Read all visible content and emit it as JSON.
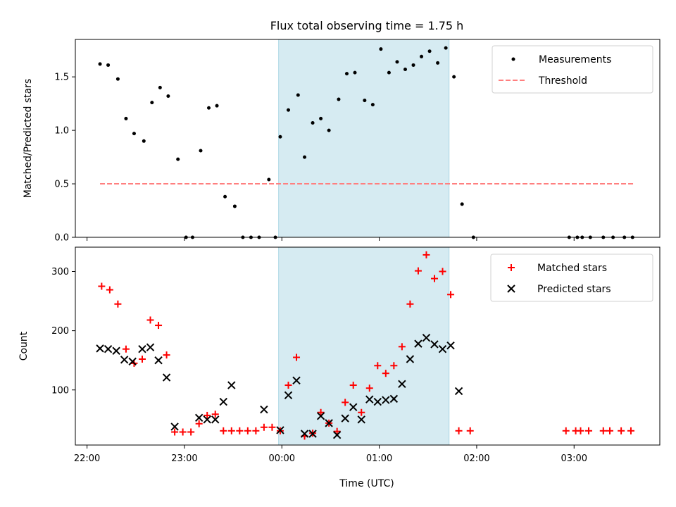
{
  "chart_data": [
    {
      "type": "scatter",
      "title": "Flux total observing time = 1.75 h",
      "ylabel": "Matched/Predicted stars",
      "ylim": [
        0,
        1.85
      ],
      "xlim_hours": [
        21.88,
        27.88
      ],
      "highlight_span": [
        "23:58",
        "01:43"
      ],
      "legend": {
        "placement": "top-right",
        "entries": [
          "Measurements",
          "Threshold"
        ]
      },
      "y_ticks": [
        "0.0",
        "0.5",
        "1.0",
        "1.5"
      ],
      "threshold": {
        "value": 0.5,
        "x_range": [
          "22:08",
          "03:37"
        ],
        "color": "#ff7f7f"
      },
      "series": [
        {
          "name": "Measurements",
          "color": "#000000",
          "points": [
            [
              "22:08",
              1.62
            ],
            [
              "22:13",
              1.61
            ],
            [
              "22:19",
              1.48
            ],
            [
              "22:24",
              1.11
            ],
            [
              "22:29",
              0.97
            ],
            [
              "22:35",
              0.9
            ],
            [
              "22:40",
              1.26
            ],
            [
              "22:45",
              1.4
            ],
            [
              "22:50",
              1.32
            ],
            [
              "22:56",
              0.73
            ],
            [
              "23:01",
              0.0
            ],
            [
              "23:05",
              0.0
            ],
            [
              "23:10",
              0.81
            ],
            [
              "23:15",
              1.21
            ],
            [
              "23:20",
              1.23
            ],
            [
              "23:25",
              0.38
            ],
            [
              "23:31",
              0.29
            ],
            [
              "23:36",
              0.0
            ],
            [
              "23:41",
              0.0
            ],
            [
              "23:46",
              0.0
            ],
            [
              "23:52",
              0.54
            ],
            [
              "23:56",
              0.0
            ],
            [
              "23:59",
              0.94
            ],
            [
              "00:04",
              1.19
            ],
            [
              "00:10",
              1.33
            ],
            [
              "00:14",
              0.75
            ],
            [
              "00:19",
              1.07
            ],
            [
              "00:24",
              1.11
            ],
            [
              "00:29",
              1.0
            ],
            [
              "00:35",
              1.29
            ],
            [
              "00:40",
              1.53
            ],
            [
              "00:45",
              1.54
            ],
            [
              "00:51",
              1.28
            ],
            [
              "00:56",
              1.24
            ],
            [
              "01:01",
              1.76
            ],
            [
              "01:06",
              1.54
            ],
            [
              "01:11",
              1.64
            ],
            [
              "01:16",
              1.57
            ],
            [
              "01:21",
              1.61
            ],
            [
              "01:26",
              1.69
            ],
            [
              "01:31",
              1.74
            ],
            [
              "01:36",
              1.63
            ],
            [
              "01:41",
              1.77
            ],
            [
              "01:46",
              1.5
            ],
            [
              "01:51",
              0.31
            ],
            [
              "01:58",
              0.0
            ],
            [
              "02:57",
              0.0
            ],
            [
              "03:02",
              0.0
            ],
            [
              "03:05",
              0.0
            ],
            [
              "03:10",
              0.0
            ],
            [
              "03:18",
              0.0
            ],
            [
              "03:24",
              0.0
            ],
            [
              "03:31",
              0.0
            ],
            [
              "03:36",
              0.0
            ]
          ]
        }
      ]
    },
    {
      "type": "scatter",
      "xlabel": "Time (UTC)",
      "ylabel": "Count",
      "ylim": [
        7,
        341
      ],
      "xlim_hours": [
        21.88,
        27.88
      ],
      "highlight_span": [
        "23:58",
        "01:43"
      ],
      "legend": {
        "placement": "top-right",
        "entries": [
          "Matched stars",
          "Predicted stars"
        ]
      },
      "x_ticks": [
        "22:00",
        "23:00",
        "00:00",
        "01:00",
        "02:00",
        "03:00"
      ],
      "y_ticks": [
        "100",
        "200",
        "300"
      ],
      "series": [
        {
          "name": "Matched stars",
          "marker": "+",
          "color": "#ff0000",
          "points": [
            [
              "22:09",
              275
            ],
            [
              "22:14",
              269
            ],
            [
              "22:19",
              245
            ],
            [
              "22:24",
              169
            ],
            [
              "22:29",
              145
            ],
            [
              "22:34",
              152
            ],
            [
              "22:39",
              218
            ],
            [
              "22:44",
              209
            ],
            [
              "22:49",
              159
            ],
            [
              "22:54",
              29
            ],
            [
              "22:59",
              29
            ],
            [
              "23:04",
              29
            ],
            [
              "23:09",
              43
            ],
            [
              "23:14",
              57
            ],
            [
              "23:19",
              59
            ],
            [
              "23:24",
              31
            ],
            [
              "23:29",
              31
            ],
            [
              "23:34",
              31
            ],
            [
              "23:39",
              31
            ],
            [
              "23:44",
              31
            ],
            [
              "23:49",
              37
            ],
            [
              "23:54",
              37
            ],
            [
              "23:59",
              31
            ],
            [
              "00:04",
              108
            ],
            [
              "00:09",
              155
            ],
            [
              "00:14",
              22
            ],
            [
              "00:19",
              27
            ],
            [
              "00:24",
              62
            ],
            [
              "00:29",
              44
            ],
            [
              "00:34",
              30
            ],
            [
              "00:39",
              79
            ],
            [
              "00:44",
              108
            ],
            [
              "00:49",
              62
            ],
            [
              "00:54",
              103
            ],
            [
              "00:59",
              141
            ],
            [
              "01:04",
              128
            ],
            [
              "01:09",
              141
            ],
            [
              "01:14",
              173
            ],
            [
              "01:19",
              245
            ],
            [
              "01:24",
              301
            ],
            [
              "01:29",
              328
            ],
            [
              "01:34",
              288
            ],
            [
              "01:39",
              300
            ],
            [
              "01:44",
              261
            ],
            [
              "01:49",
              31
            ],
            [
              "01:56",
              31
            ],
            [
              "02:55",
              31
            ],
            [
              "03:01",
              31
            ],
            [
              "03:04",
              31
            ],
            [
              "03:09",
              31
            ],
            [
              "03:18",
              31
            ],
            [
              "03:22",
              31
            ],
            [
              "03:29",
              31
            ],
            [
              "03:35",
              31
            ]
          ]
        },
        {
          "name": "Predicted stars",
          "marker": "x",
          "color": "#000000",
          "points": [
            [
              "22:08",
              170
            ],
            [
              "22:13",
              169
            ],
            [
              "22:18",
              166
            ],
            [
              "22:23",
              151
            ],
            [
              "22:28",
              148
            ],
            [
              "22:34",
              169
            ],
            [
              "22:39",
              172
            ],
            [
              "22:44",
              150
            ],
            [
              "22:49",
              121
            ],
            [
              "22:54",
              38
            ],
            [
              "23:09",
              53
            ],
            [
              "23:14",
              50
            ],
            [
              "23:19",
              50
            ],
            [
              "23:24",
              80
            ],
            [
              "23:29",
              108
            ],
            [
              "23:49",
              67
            ],
            [
              "23:59",
              32
            ],
            [
              "00:04",
              91
            ],
            [
              "00:09",
              116
            ],
            [
              "00:14",
              26
            ],
            [
              "00:19",
              26
            ],
            [
              "00:24",
              56
            ],
            [
              "00:29",
              44
            ],
            [
              "00:34",
              24
            ],
            [
              "00:39",
              52
            ],
            [
              "00:44",
              71
            ],
            [
              "00:49",
              50
            ],
            [
              "00:54",
              84
            ],
            [
              "00:59",
              80
            ],
            [
              "01:04",
              83
            ],
            [
              "01:09",
              85
            ],
            [
              "01:14",
              110
            ],
            [
              "01:19",
              152
            ],
            [
              "01:24",
              178
            ],
            [
              "01:29",
              188
            ],
            [
              "01:34",
              177
            ],
            [
              "01:39",
              169
            ],
            [
              "01:44",
              175
            ],
            [
              "01:49",
              98
            ]
          ]
        }
      ]
    }
  ]
}
